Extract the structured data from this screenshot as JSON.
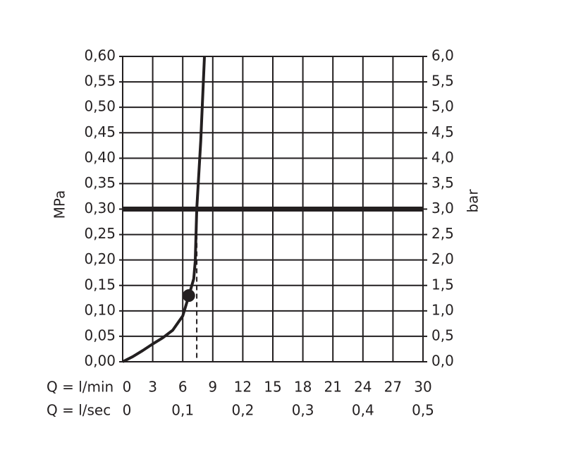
{
  "chart_data": {
    "type": "line",
    "x_label": "Q = l/min",
    "x2_label": "Q = l/sec",
    "y_label": "MPa",
    "y2_label": "bar",
    "xlim": [
      0,
      30
    ],
    "xticks": [
      0,
      3,
      6,
      9,
      12,
      15,
      18,
      21,
      24,
      27,
      30
    ],
    "x2lim": [
      0,
      0.5
    ],
    "x2ticks": [
      0,
      {
        "value": 0.1,
        "label": "0,1"
      },
      {
        "value": 0.2,
        "label": "0,2"
      },
      {
        "value": 0.3,
        "label": "0,3"
      },
      {
        "value": 0.4,
        "label": "0,4"
      },
      {
        "value": 0.5,
        "label": "0,5"
      }
    ],
    "ylim": [
      0,
      0.6
    ],
    "yticks": [
      {
        "value": 0,
        "label": "0,00"
      },
      {
        "value": 0.05,
        "label": "0,05"
      },
      {
        "value": 0.1,
        "label": "0,10"
      },
      {
        "value": 0.15,
        "label": "0,15"
      },
      {
        "value": 0.2,
        "label": "0,20"
      },
      {
        "value": 0.25,
        "label": "0,25"
      },
      {
        "value": 0.3,
        "label": "0,30"
      },
      {
        "value": 0.35,
        "label": "0,35"
      },
      {
        "value": 0.4,
        "label": "0,40"
      },
      {
        "value": 0.45,
        "label": "0,45"
      },
      {
        "value": 0.5,
        "label": "0,50"
      },
      {
        "value": 0.55,
        "label": "0,55"
      },
      {
        "value": 0.6,
        "label": "0,60"
      }
    ],
    "y2lim": [
      0,
      6
    ],
    "y2ticks": [
      {
        "value": 0,
        "label": "0,0"
      },
      {
        "value": 0.5,
        "label": "0,5"
      },
      {
        "value": 1,
        "label": "1,0"
      },
      {
        "value": 1.5,
        "label": "1,5"
      },
      {
        "value": 2,
        "label": "2,0"
      },
      {
        "value": 2.5,
        "label": "2,5"
      },
      {
        "value": 3,
        "label": "3,0"
      },
      {
        "value": 3.5,
        "label": "3,5"
      },
      {
        "value": 4,
        "label": "4,0"
      },
      {
        "value": 4.5,
        "label": "4,5"
      },
      {
        "value": 5,
        "label": "5,0"
      },
      {
        "value": 5.5,
        "label": "5,5"
      },
      {
        "value": 6,
        "label": "6,0"
      }
    ],
    "grid": true,
    "series": [
      {
        "color": "#231f20",
        "x": [
          0,
          1,
          2,
          3,
          4,
          5,
          6,
          6.6,
          7.1,
          7.25,
          7.4,
          7.8,
          8.17
        ],
        "values": [
          0,
          0.01,
          0.022,
          0.035,
          0.047,
          0.062,
          0.09,
          0.129,
          0.163,
          0.198,
          0.3,
          0.434,
          0.6
        ]
      }
    ],
    "threshold": 0.3,
    "threshold_color": "#231f20",
    "dashed_x": 7.4,
    "operating_point": {
      "x": 6.6,
      "y": 0.13
    }
  }
}
